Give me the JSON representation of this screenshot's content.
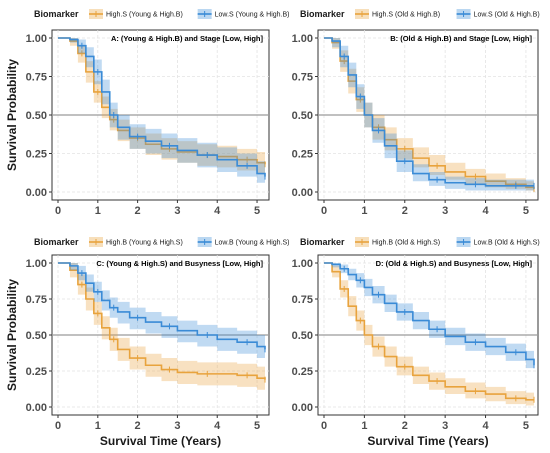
{
  "chart_data": [
    {
      "type": "line",
      "subtype": "kaplan-meier",
      "title": "A: (Young & High.B) and Stage [Low, High]",
      "legend_title": "Biomarker",
      "legend_position": "top",
      "ylabel": "Survival Probability",
      "xlabel": "",
      "xlim": [
        0,
        5.2
      ],
      "ylim": [
        0,
        1
      ],
      "xticks": [
        "0",
        "1",
        "2",
        "3",
        "4",
        "5"
      ],
      "yticks": [
        "0.00",
        "0.25",
        "0.50",
        "0.75",
        "1.00"
      ],
      "reference_line": 0.5,
      "series": [
        {
          "name": "High.S (Young & High.B)",
          "color": "#E8A33D",
          "x": [
            0,
            0.3,
            0.5,
            0.7,
            0.9,
            1.1,
            1.3,
            1.5,
            1.8,
            2.2,
            2.6,
            3.0,
            3.5,
            4.0,
            4.5,
            5.0,
            5.2
          ],
          "y": [
            1.0,
            0.98,
            0.9,
            0.78,
            0.65,
            0.55,
            0.47,
            0.4,
            0.35,
            0.31,
            0.28,
            0.26,
            0.24,
            0.23,
            0.21,
            0.19,
            0.18
          ],
          "lower": [
            1.0,
            0.95,
            0.84,
            0.71,
            0.58,
            0.48,
            0.4,
            0.33,
            0.28,
            0.24,
            0.21,
            0.19,
            0.17,
            0.16,
            0.14,
            0.12,
            0.11
          ],
          "upper": [
            1.0,
            1.0,
            0.95,
            0.85,
            0.72,
            0.62,
            0.54,
            0.47,
            0.42,
            0.38,
            0.35,
            0.33,
            0.31,
            0.3,
            0.28,
            0.26,
            0.25
          ]
        },
        {
          "name": "Low.S (Young & High.B)",
          "color": "#3A8BD6",
          "x": [
            0,
            0.3,
            0.5,
            0.7,
            0.9,
            1.1,
            1.3,
            1.5,
            1.8,
            2.2,
            2.6,
            3.0,
            3.5,
            4.0,
            4.5,
            5.0,
            5.2
          ],
          "y": [
            1.0,
            0.99,
            0.95,
            0.88,
            0.78,
            0.65,
            0.5,
            0.42,
            0.36,
            0.33,
            0.3,
            0.27,
            0.24,
            0.21,
            0.17,
            0.12,
            0.1
          ],
          "lower": [
            1.0,
            0.97,
            0.9,
            0.81,
            0.7,
            0.57,
            0.42,
            0.34,
            0.28,
            0.25,
            0.22,
            0.19,
            0.16,
            0.13,
            0.1,
            0.06,
            0.05
          ],
          "upper": [
            1.0,
            1.0,
            0.99,
            0.94,
            0.86,
            0.73,
            0.58,
            0.5,
            0.44,
            0.41,
            0.38,
            0.35,
            0.32,
            0.29,
            0.25,
            0.2,
            0.17
          ]
        }
      ]
    },
    {
      "type": "line",
      "subtype": "kaplan-meier",
      "title": "B: (Old & High.B) and Stage [Low, High]",
      "legend_title": "Biomarker",
      "legend_position": "top",
      "ylabel": "",
      "xlabel": "",
      "xlim": [
        0,
        5.2
      ],
      "ylim": [
        0,
        1
      ],
      "xticks": [
        "0",
        "1",
        "2",
        "3",
        "4",
        "5"
      ],
      "yticks": [
        "0.00",
        "0.25",
        "0.50",
        "0.75",
        "1.00"
      ],
      "reference_line": 0.5,
      "series": [
        {
          "name": "High.S (Old & High.B)",
          "color": "#E8A33D",
          "x": [
            0,
            0.2,
            0.4,
            0.6,
            0.8,
            1.0,
            1.2,
            1.5,
            1.8,
            2.2,
            2.6,
            3.0,
            3.5,
            4.0,
            4.5,
            5.0,
            5.2
          ],
          "y": [
            1.0,
            0.97,
            0.85,
            0.72,
            0.6,
            0.5,
            0.42,
            0.34,
            0.28,
            0.22,
            0.17,
            0.13,
            0.1,
            0.07,
            0.05,
            0.03,
            0.02
          ],
          "lower": [
            1.0,
            0.93,
            0.78,
            0.64,
            0.52,
            0.42,
            0.34,
            0.27,
            0.21,
            0.16,
            0.11,
            0.08,
            0.05,
            0.03,
            0.02,
            0.01,
            0.0
          ],
          "upper": [
            1.0,
            1.0,
            0.92,
            0.8,
            0.68,
            0.58,
            0.5,
            0.42,
            0.35,
            0.29,
            0.24,
            0.19,
            0.15,
            0.12,
            0.09,
            0.07,
            0.06
          ]
        },
        {
          "name": "Low.S (Old & High.B)",
          "color": "#3A8BD6",
          "x": [
            0,
            0.2,
            0.4,
            0.6,
            0.8,
            1.0,
            1.2,
            1.5,
            1.8,
            2.2,
            2.6,
            3.0,
            3.5,
            4.0,
            4.5,
            5.0,
            5.2
          ],
          "y": [
            1.0,
            0.98,
            0.88,
            0.76,
            0.62,
            0.5,
            0.4,
            0.3,
            0.2,
            0.12,
            0.08,
            0.06,
            0.05,
            0.04,
            0.04,
            0.04,
            0.04
          ],
          "lower": [
            1.0,
            0.94,
            0.81,
            0.68,
            0.54,
            0.42,
            0.32,
            0.22,
            0.13,
            0.07,
            0.04,
            0.02,
            0.01,
            0.01,
            0.01,
            0.01,
            0.01
          ],
          "upper": [
            1.0,
            1.0,
            0.95,
            0.84,
            0.7,
            0.58,
            0.48,
            0.38,
            0.27,
            0.18,
            0.13,
            0.1,
            0.09,
            0.08,
            0.08,
            0.08,
            0.08
          ]
        }
      ]
    },
    {
      "type": "line",
      "subtype": "kaplan-meier",
      "title": "C: (Young & High.S) and Busyness [Low, High]",
      "legend_title": "Biomarker",
      "legend_position": "top",
      "ylabel": "Survival Probability",
      "xlabel": "Survival Time (Years)",
      "xlim": [
        0,
        5.2
      ],
      "ylim": [
        0,
        1
      ],
      "xticks": [
        "0",
        "1",
        "2",
        "3",
        "4",
        "5"
      ],
      "yticks": [
        "0.00",
        "0.25",
        "0.50",
        "0.75",
        "1.00"
      ],
      "reference_line": 0.5,
      "series": [
        {
          "name": "High.B (Young & High.S)",
          "color": "#E8A33D",
          "x": [
            0,
            0.3,
            0.5,
            0.7,
            0.9,
            1.1,
            1.3,
            1.5,
            1.8,
            2.2,
            2.6,
            3.0,
            3.5,
            4.0,
            4.5,
            5.0,
            5.2
          ],
          "y": [
            1.0,
            0.95,
            0.85,
            0.75,
            0.65,
            0.55,
            0.47,
            0.4,
            0.34,
            0.29,
            0.26,
            0.24,
            0.23,
            0.23,
            0.22,
            0.2,
            0.19
          ],
          "lower": [
            1.0,
            0.9,
            0.78,
            0.67,
            0.57,
            0.47,
            0.39,
            0.32,
            0.26,
            0.21,
            0.18,
            0.16,
            0.15,
            0.15,
            0.14,
            0.12,
            0.11
          ],
          "upper": [
            1.0,
            1.0,
            0.92,
            0.83,
            0.73,
            0.63,
            0.55,
            0.48,
            0.42,
            0.37,
            0.34,
            0.32,
            0.31,
            0.31,
            0.3,
            0.28,
            0.27
          ]
        },
        {
          "name": "Low.B (Young & High.S)",
          "color": "#3A8BD6",
          "x": [
            0,
            0.3,
            0.5,
            0.7,
            0.9,
            1.1,
            1.3,
            1.5,
            1.8,
            2.2,
            2.6,
            3.0,
            3.5,
            4.0,
            4.5,
            5.0,
            5.2
          ],
          "y": [
            1.0,
            0.98,
            0.93,
            0.86,
            0.8,
            0.74,
            0.69,
            0.66,
            0.62,
            0.59,
            0.56,
            0.53,
            0.5,
            0.47,
            0.45,
            0.42,
            0.4
          ],
          "lower": [
            1.0,
            0.95,
            0.88,
            0.8,
            0.73,
            0.67,
            0.62,
            0.58,
            0.54,
            0.51,
            0.48,
            0.45,
            0.42,
            0.39,
            0.37,
            0.34,
            0.32
          ],
          "upper": [
            1.0,
            1.0,
            0.98,
            0.92,
            0.87,
            0.81,
            0.76,
            0.73,
            0.69,
            0.66,
            0.63,
            0.6,
            0.57,
            0.55,
            0.53,
            0.5,
            0.48
          ]
        }
      ]
    },
    {
      "type": "line",
      "subtype": "kaplan-meier",
      "title": "D: (Old & High.S) and Busyness [Low, High]",
      "legend_title": "Biomarker",
      "legend_position": "top",
      "ylabel": "",
      "xlabel": "Survival Time (Years)",
      "xlim": [
        0,
        5.2
      ],
      "ylim": [
        0,
        1
      ],
      "xticks": [
        "0",
        "1",
        "2",
        "3",
        "4",
        "5"
      ],
      "yticks": [
        "0.00",
        "0.25",
        "0.50",
        "0.75",
        "1.00"
      ],
      "reference_line": 0.5,
      "series": [
        {
          "name": "High.B (Old & High.S)",
          "color": "#E8A33D",
          "x": [
            0,
            0.2,
            0.4,
            0.6,
            0.8,
            1.0,
            1.2,
            1.5,
            1.8,
            2.2,
            2.6,
            3.0,
            3.5,
            4.0,
            4.5,
            5.0,
            5.2
          ],
          "y": [
            1.0,
            0.94,
            0.82,
            0.7,
            0.6,
            0.5,
            0.42,
            0.35,
            0.28,
            0.22,
            0.18,
            0.14,
            0.11,
            0.09,
            0.06,
            0.05,
            0.05
          ],
          "lower": [
            1.0,
            0.9,
            0.76,
            0.63,
            0.53,
            0.43,
            0.35,
            0.28,
            0.22,
            0.16,
            0.12,
            0.09,
            0.06,
            0.04,
            0.02,
            0.01,
            0.01
          ],
          "upper": [
            1.0,
            0.98,
            0.88,
            0.77,
            0.67,
            0.57,
            0.49,
            0.42,
            0.35,
            0.28,
            0.24,
            0.2,
            0.17,
            0.14,
            0.11,
            0.1,
            0.1
          ]
        },
        {
          "name": "Low.B (Old & High.S)",
          "color": "#3A8BD6",
          "x": [
            0,
            0.2,
            0.4,
            0.6,
            0.8,
            1.0,
            1.2,
            1.5,
            1.8,
            2.2,
            2.6,
            3.0,
            3.5,
            4.0,
            4.5,
            5.0,
            5.2
          ],
          "y": [
            1.0,
            0.99,
            0.96,
            0.92,
            0.88,
            0.83,
            0.78,
            0.72,
            0.66,
            0.6,
            0.54,
            0.49,
            0.45,
            0.42,
            0.38,
            0.33,
            0.29
          ],
          "lower": [
            1.0,
            0.97,
            0.93,
            0.88,
            0.83,
            0.77,
            0.72,
            0.66,
            0.6,
            0.54,
            0.48,
            0.43,
            0.39,
            0.36,
            0.32,
            0.27,
            0.23
          ],
          "upper": [
            1.0,
            1.0,
            0.99,
            0.96,
            0.93,
            0.89,
            0.84,
            0.78,
            0.72,
            0.66,
            0.6,
            0.55,
            0.51,
            0.48,
            0.44,
            0.39,
            0.35
          ]
        }
      ]
    }
  ]
}
